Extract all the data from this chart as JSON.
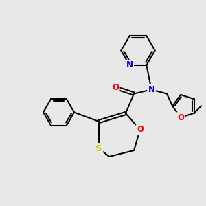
{
  "bg_color": "#e8e8e8",
  "bond_color": "#000000",
  "bond_width": 1.5,
  "atom_colors": {
    "N": "#0000cc",
    "O": "#ff0000",
    "S": "#cccc00",
    "C": "#000000"
  },
  "font_size": 8.5,
  "figsize": [
    3.0,
    3.0
  ],
  "dpi": 100
}
